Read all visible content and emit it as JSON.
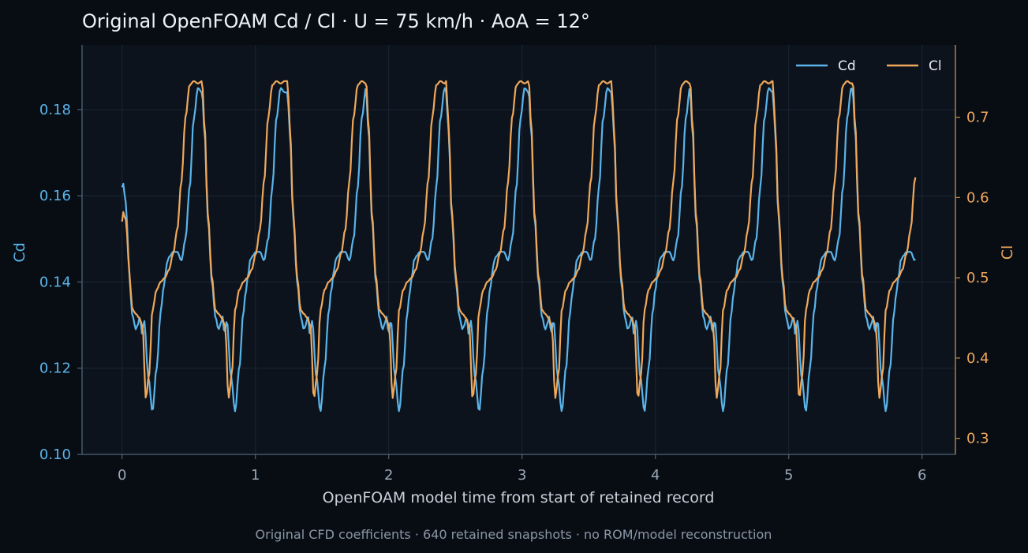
{
  "chart_data": {
    "type": "line",
    "title": "Original OpenFOAM Cd / Cl · U = 75 km/h · AoA = 12°",
    "xlabel": "OpenFOAM model time from start of retained record",
    "ylabel_left": "Cd",
    "ylabel_right": "Cl",
    "caption": "Original CFD coefficients · 640 retained snapshots · no ROM/model reconstruction",
    "xlim": [
      -0.3,
      6.25
    ],
    "ylim_left": [
      0.1,
      0.195
    ],
    "ylim_right": [
      0.28,
      0.79
    ],
    "x_ticks": [
      0,
      1,
      2,
      3,
      4,
      5,
      6
    ],
    "x_tick_labels": [
      "0",
      "1",
      "2",
      "3",
      "4",
      "5",
      "6"
    ],
    "y_left_ticks": [
      0.1,
      0.12,
      0.14,
      0.16,
      0.18
    ],
    "y_left_tick_labels": [
      "0.10",
      "0.12",
      "0.14",
      "0.16",
      "0.18"
    ],
    "y_right_ticks": [
      0.3,
      0.4,
      0.5,
      0.6,
      0.7
    ],
    "y_right_tick_labels": [
      "0.3",
      "0.4",
      "0.5",
      "0.6",
      "0.7"
    ],
    "grid": true,
    "legend_position": "top-right",
    "n_snapshots": 640,
    "period": 0.62,
    "cycle_starts": [
      -0.02,
      0.6,
      1.24,
      1.83,
      2.43,
      3.05,
      3.67,
      4.26,
      4.88,
      5.48
    ],
    "series": [
      {
        "name": "Cd",
        "axis": "left",
        "color": "#5ab4ea",
        "x_start": 0.0,
        "x_end": 5.95,
        "initial_value": 0.162,
        "phase": [
          0,
          0.03,
          0.07,
          0.12,
          0.16,
          0.2,
          0.22,
          0.25,
          0.27,
          0.3,
          0.35,
          0.4,
          0.45,
          0.5,
          0.53,
          0.56,
          0.58,
          0.61,
          0.65,
          0.7,
          0.75,
          0.8,
          0.85,
          0.9,
          0.95,
          1.0
        ],
        "cycle_values": [
          0.184,
          0.175,
          0.155,
          0.14,
          0.132,
          0.129,
          0.13,
          0.132,
          0.128,
          0.131,
          0.118,
          0.11,
          0.12,
          0.133,
          0.138,
          0.142,
          0.145,
          0.146,
          0.147,
          0.147,
          0.145,
          0.15,
          0.162,
          0.178,
          0.185,
          0.184
        ]
      },
      {
        "name": "Cl",
        "axis": "right",
        "color": "#f0a85a",
        "x_start": 0.0,
        "x_end": 5.95,
        "initial_value": 0.57,
        "phase": [
          0,
          0.03,
          0.07,
          0.12,
          0.16,
          0.2,
          0.24,
          0.28,
          0.32,
          0.36,
          0.4,
          0.45,
          0.5,
          0.55,
          0.6,
          0.65,
          0.7,
          0.75,
          0.8,
          0.85,
          0.9,
          0.95,
          1.0
        ],
        "cycle_values": [
          0.745,
          0.69,
          0.58,
          0.5,
          0.46,
          0.455,
          0.45,
          0.44,
          0.35,
          0.38,
          0.46,
          0.485,
          0.495,
          0.5,
          0.51,
          0.53,
          0.56,
          0.62,
          0.7,
          0.74,
          0.745,
          0.742,
          0.745
        ]
      }
    ]
  }
}
